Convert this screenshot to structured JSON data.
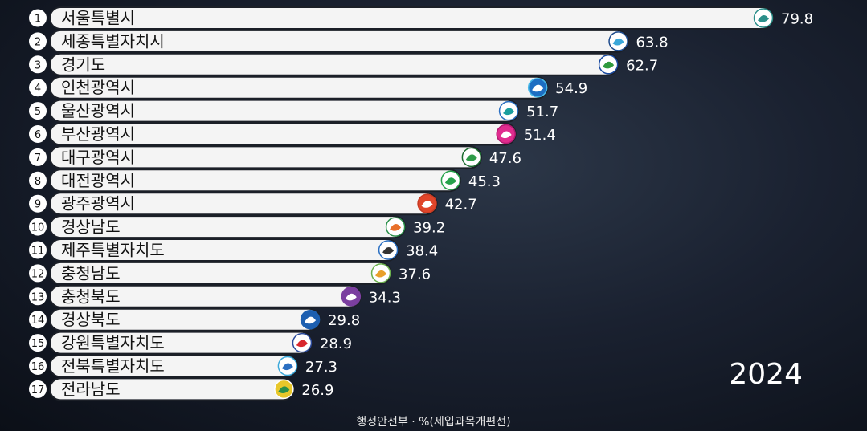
{
  "year_label": "2024",
  "source_label": "행정안전부 · %(세입과목개편전)",
  "colors": {
    "bar_fill": "#f4f4f4",
    "bar_stroke": "#1b1f27",
    "rank_fill": "#ffffff",
    "rank_text": "#111111",
    "label_text": "#111111",
    "value_text": "#ffffff"
  },
  "chart_data": {
    "type": "bar",
    "orientation": "horizontal",
    "title": "",
    "xlabel": "",
    "ylabel": "",
    "xlim": [
      0,
      84
    ],
    "grid": false,
    "legend": "none",
    "ranks": [
      "1",
      "2",
      "3",
      "4",
      "5",
      "6",
      "7",
      "8",
      "9",
      "10",
      "11",
      "12",
      "13",
      "14",
      "15",
      "16",
      "17"
    ],
    "categories": [
      "서울특별시",
      "세종특별자치시",
      "경기도",
      "인천광역시",
      "울산광역시",
      "부산광역시",
      "대구광역시",
      "대전광역시",
      "광주광역시",
      "경상남도",
      "제주특별자치도",
      "충청남도",
      "충청북도",
      "경상북도",
      "강원특별자치도",
      "전북특별자치도",
      "전라남도"
    ],
    "values": [
      79.8,
      63.8,
      62.7,
      54.9,
      51.7,
      51.4,
      47.6,
      45.3,
      42.7,
      39.2,
      38.4,
      37.6,
      34.3,
      29.8,
      28.9,
      27.3,
      26.9
    ],
    "value_labels": [
      "79.8",
      "63.8",
      "62.7",
      "54.9",
      "51.7",
      "51.4",
      "47.6",
      "45.3",
      "42.7",
      "39.2",
      "38.4",
      "37.6",
      "34.3",
      "29.8",
      "28.9",
      "27.3",
      "26.9"
    ],
    "emblems": [
      {
        "name": "seoul-emblem-icon",
        "colors": [
          "#ffffff",
          "#2b8f8a",
          "#2b8f8a"
        ]
      },
      {
        "name": "sejong-emblem-icon",
        "colors": [
          "#ffffff",
          "#3aa7d9",
          "#1d4a8c"
        ]
      },
      {
        "name": "gyeonggi-emblem-icon",
        "colors": [
          "#ffffff",
          "#2f9a3e",
          "#1a4aa0"
        ]
      },
      {
        "name": "incheon-emblem-icon",
        "colors": [
          "#1d6ec2",
          "#ffffff",
          "#48b8e8"
        ]
      },
      {
        "name": "ulsan-emblem-icon",
        "colors": [
          "#ffffff",
          "#1a9e9e",
          "#2a6fc2"
        ]
      },
      {
        "name": "busan-emblem-icon",
        "colors": [
          "#e02c8e",
          "#ffffff",
          "#b31972"
        ]
      },
      {
        "name": "daegu-emblem-icon",
        "colors": [
          "#ffffff",
          "#2e9c48",
          "#1a6a2e"
        ]
      },
      {
        "name": "daejeon-emblem-icon",
        "colors": [
          "#ffffff",
          "#26a24a",
          "#26a24a"
        ]
      },
      {
        "name": "gwangju-emblem-icon",
        "colors": [
          "#e0452a",
          "#ffffff",
          "#c73a22"
        ]
      },
      {
        "name": "gyeongnam-emblem-icon",
        "colors": [
          "#ffffff",
          "#e8702a",
          "#2a8f4a"
        ]
      },
      {
        "name": "jeju-emblem-icon",
        "colors": [
          "#ffffff",
          "#333333",
          "#2a6fc2"
        ]
      },
      {
        "name": "chungnam-emblem-icon",
        "colors": [
          "#ffffff",
          "#e8a02a",
          "#6ab04c"
        ]
      },
      {
        "name": "chungbuk-emblem-icon",
        "colors": [
          "#7b3fa0",
          "#ffffff",
          "#7b3fa0"
        ]
      },
      {
        "name": "gyeongbuk-emblem-icon",
        "colors": [
          "#1d5fb0",
          "#ffffff",
          "#1d5fb0"
        ]
      },
      {
        "name": "gangwon-emblem-icon",
        "colors": [
          "#ffffff",
          "#d8282e",
          "#2a4a9c"
        ]
      },
      {
        "name": "jeonbuk-emblem-icon",
        "colors": [
          "#ffffff",
          "#2a6fc2",
          "#3aa7d9"
        ]
      },
      {
        "name": "jeonnam-emblem-icon",
        "colors": [
          "#e8c72a",
          "#2a8f4a",
          "#ffffff"
        ]
      }
    ]
  }
}
